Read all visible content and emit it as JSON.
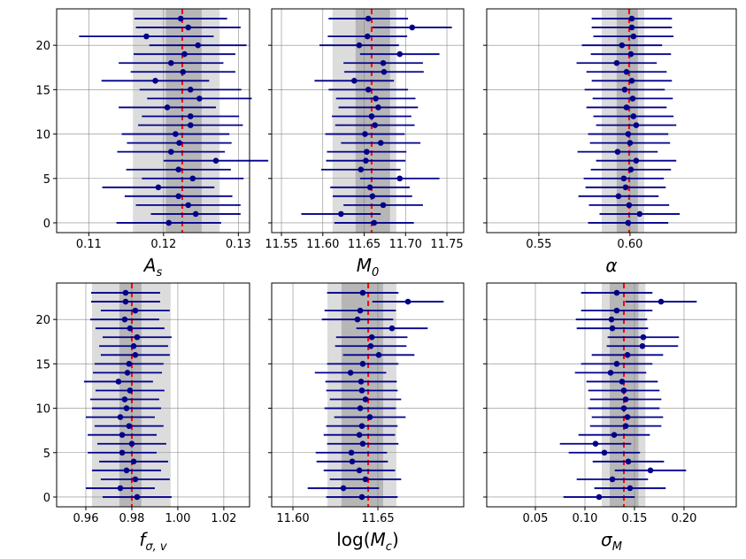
{
  "chart_data": [
    {
      "type": "errorbar",
      "xlabel": {
        "main": "A",
        "sub": "s"
      },
      "color": "#00008b",
      "ref_color": "#ff0000",
      "grid": true,
      "ytick_labels": true,
      "xlim": [
        0.1057,
        0.1315
      ],
      "xticks": [
        0.11,
        0.12,
        0.13
      ],
      "ylim": [
        -1.1,
        24.1
      ],
      "yticks": [
        0,
        5,
        10,
        15,
        20
      ],
      "ref_line": 0.1225,
      "bands": [
        {
          "range": [
            0.1159,
            0.1275
          ],
          "color": "#dcdcdc"
        },
        {
          "range": [
            0.1203,
            0.1251
          ],
          "color": "#a9a9a9"
        }
      ],
      "y": [
        0,
        1,
        2,
        3,
        4,
        5,
        6,
        7,
        8,
        9,
        10,
        11,
        12,
        13,
        14,
        15,
        16,
        17,
        18,
        19,
        20,
        21,
        22,
        23
      ],
      "x": [
        0.1207,
        0.1243,
        0.1233,
        0.122,
        0.1193,
        0.1239,
        0.122,
        0.127,
        0.121,
        0.1221,
        0.1216,
        0.1236,
        0.1236,
        0.1205,
        0.1248,
        0.1236,
        0.1189,
        0.1226,
        0.121,
        0.1228,
        0.1246,
        0.1177,
        0.1233,
        0.1223
      ],
      "xerr": [
        0.007,
        0.006,
        0.007,
        0.0072,
        0.0075,
        0.0068,
        0.007,
        0.007,
        0.0072,
        0.007,
        0.0072,
        0.007,
        0.0065,
        0.0065,
        0.007,
        0.0068,
        0.0072,
        0.007,
        0.007,
        0.0068,
        0.0065,
        0.009,
        0.007,
        0.0062
      ]
    },
    {
      "type": "errorbar",
      "xlabel": {
        "main": "M",
        "sub": "0"
      },
      "color": "#00008b",
      "ref_color": "#ff0000",
      "grid": true,
      "ytick_labels": false,
      "xlim": [
        11.5382,
        11.7703
      ],
      "xticks": [
        11.55,
        {
          "value": 11.6,
          "label": "11.60"
        },
        11.65,
        {
          "value": 11.7,
          "label": "11.70"
        },
        11.75
      ],
      "ylim": [
        -1.1,
        24.1
      ],
      "yticks": [
        0,
        5,
        10,
        15,
        20
      ],
      "ref_line": 11.659,
      "bands": [
        {
          "range": [
            11.6118,
            11.6888
          ],
          "color": "#dcdcdc"
        },
        {
          "range": [
            11.6396,
            11.6813
          ],
          "color": "#a9a9a9"
        }
      ],
      "y": [
        0,
        1,
        2,
        3,
        4,
        5,
        6,
        7,
        8,
        9,
        10,
        11,
        12,
        13,
        14,
        15,
        16,
        17,
        18,
        19,
        20,
        21,
        22,
        23
      ],
      "x": [
        11.662,
        11.622,
        11.673,
        11.66,
        11.657,
        11.693,
        11.646,
        11.652,
        11.653,
        11.67,
        11.651,
        11.663,
        11.659,
        11.667,
        11.664,
        11.655,
        11.638,
        11.674,
        11.673,
        11.693,
        11.644,
        11.654,
        11.708,
        11.655
      ],
      "xerr": [
        0.048,
        0.048,
        0.048,
        0.048,
        0.048,
        0.048,
        0.048,
        0.048,
        0.048,
        0.048,
        0.048,
        0.048,
        0.048,
        0.048,
        0.048,
        0.048,
        0.048,
        0.048,
        0.048,
        0.048,
        0.048,
        0.048,
        0.048,
        0.048
      ]
    },
    {
      "type": "errorbar",
      "xlabel": {
        "main": "α"
      },
      "color": "#00008b",
      "ref_color": "#ff0000",
      "grid": true,
      "ytick_labels": false,
      "xlim": [
        0.5214,
        0.6583
      ],
      "xticks": [
        0.55,
        {
          "value": 0.6,
          "label": "0.60"
        }
      ],
      "ylim": [
        -1.1,
        24.1
      ],
      "yticks": [
        0,
        5,
        10,
        15,
        20
      ],
      "ref_line": 0.5995,
      "bands": [
        {
          "range": [
            0.5845,
            0.6078
          ],
          "color": "#dcdcdc"
        },
        {
          "range": [
            0.5927,
            0.6043
          ],
          "color": "#a9a9a9"
        }
      ],
      "y": [
        0,
        1,
        2,
        3,
        4,
        5,
        6,
        7,
        8,
        9,
        10,
        11,
        12,
        13,
        14,
        15,
        16,
        17,
        18,
        19,
        20,
        21,
        22,
        23
      ],
      "x": [
        0.599,
        0.6053,
        0.5995,
        0.5937,
        0.5976,
        0.5966,
        0.6005,
        0.6034,
        0.5932,
        0.6,
        0.599,
        0.6034,
        0.6019,
        0.5981,
        0.6015,
        0.5971,
        0.601,
        0.5981,
        0.5927,
        0.6005,
        0.5956,
        0.6019,
        0.601,
        0.601
      ],
      "xerr": [
        0.022,
        0.022,
        0.022,
        0.022,
        0.022,
        0.022,
        0.022,
        0.022,
        0.022,
        0.022,
        0.022,
        0.022,
        0.022,
        0.022,
        0.022,
        0.022,
        0.022,
        0.022,
        0.022,
        0.022,
        0.022,
        0.022,
        0.022,
        0.022
      ]
    },
    {
      "type": "errorbar",
      "xlabel": {
        "main": "f",
        "sub": "σ, v"
      },
      "color": "#00008b",
      "ref_color": "#ff0000",
      "grid": true,
      "ytick_labels": true,
      "xlim": [
        0.9473,
        1.0312
      ],
      "xticks": [
        0.96,
        0.98,
        {
          "value": 1.0,
          "label": "1.00"
        },
        1.02
      ],
      "ylim": [
        -1.1,
        24.1
      ],
      "yticks": [
        0,
        5,
        10,
        15,
        20
      ],
      "ref_line": 0.98,
      "bands": [
        {
          "range": [
            0.9627,
            0.9969
          ],
          "color": "#dcdcdc"
        },
        {
          "range": [
            0.9746,
            0.9842
          ],
          "color": "#a9a9a9"
        }
      ],
      "y": [
        0,
        1,
        2,
        3,
        4,
        5,
        6,
        7,
        8,
        9,
        10,
        11,
        12,
        13,
        14,
        15,
        16,
        17,
        18,
        19,
        20,
        21,
        22,
        23
      ],
      "x": [
        0.9823,
        0.975,
        0.9815,
        0.9777,
        0.9808,
        0.9758,
        0.98,
        0.9758,
        0.9788,
        0.975,
        0.9777,
        0.9769,
        0.9792,
        0.9742,
        0.9781,
        0.9788,
        0.9815,
        0.9808,
        0.9823,
        0.9792,
        0.9769,
        0.9815,
        0.9773,
        0.9773
      ],
      "xerr": [
        0.015,
        0.015,
        0.015,
        0.015,
        0.015,
        0.015,
        0.015,
        0.015,
        0.015,
        0.015,
        0.015,
        0.015,
        0.015,
        0.015,
        0.015,
        0.015,
        0.015,
        0.015,
        0.015,
        0.015,
        0.015,
        0.015,
        0.015,
        0.015
      ]
    },
    {
      "type": "errorbar",
      "xlabel": {
        "pre": "log(",
        "main": "M",
        "sub": "c",
        "post": ")"
      },
      "color": "#00008b",
      "ref_color": "#ff0000",
      "grid": true,
      "ytick_labels": false,
      "xlim": [
        11.5875,
        11.7005
      ],
      "xticks": [
        {
          "value": 11.6,
          "label": "11.60"
        },
        11.65
      ],
      "ylim": [
        -1.1,
        24.1
      ],
      "yticks": [
        0,
        5,
        10,
        15,
        20
      ],
      "ref_line": 11.6443,
      "bands": [
        {
          "range": [
            11.6203,
            11.6609
          ],
          "color": "#dcdcdc"
        },
        {
          "range": [
            11.6286,
            11.6531
          ],
          "color": "#a9a9a9"
        }
      ],
      "y": [
        0,
        1,
        2,
        3,
        4,
        5,
        6,
        7,
        8,
        9,
        10,
        11,
        12,
        13,
        14,
        15,
        16,
        17,
        18,
        19,
        20,
        21,
        22,
        23
      ],
      "x": [
        11.6406,
        11.6297,
        11.6427,
        11.6391,
        11.6349,
        11.6344,
        11.6411,
        11.6391,
        11.6406,
        11.6453,
        11.6396,
        11.6427,
        11.6406,
        11.6401,
        11.6339,
        11.6411,
        11.6505,
        11.6458,
        11.6464,
        11.6583,
        11.638,
        11.6396,
        11.6677,
        11.6411
      ],
      "xerr": [
        0.021,
        0.021,
        0.021,
        0.021,
        0.021,
        0.021,
        0.021,
        0.021,
        0.021,
        0.021,
        0.021,
        0.021,
        0.021,
        0.021,
        0.021,
        0.021,
        0.021,
        0.021,
        0.021,
        0.021,
        0.021,
        0.021,
        0.021,
        0.021
      ]
    },
    {
      "type": "errorbar",
      "xlabel": {
        "main": "σ",
        "sub": "M"
      },
      "color": "#00008b",
      "ref_color": "#ff0000",
      "grid": true,
      "ytick_labels": false,
      "xlim": [
        0.0009,
        0.2527
      ],
      "xticks": [
        0.05,
        {
          "value": 0.1,
          "label": "0.10"
        },
        0.15,
        {
          "value": 0.2,
          "label": "0.20"
        }
      ],
      "ylim": [
        -1.1,
        24.1
      ],
      "yticks": [
        0,
        5,
        10,
        15,
        20
      ],
      "ref_line": 0.1393,
      "bands": [
        {
          "range": [
            0.117,
            0.161
          ],
          "color": "#dcdcdc"
        },
        {
          "range": [
            0.125,
            0.154
          ],
          "color": "#a9a9a9"
        }
      ],
      "y": [
        0,
        1,
        2,
        3,
        4,
        5,
        6,
        7,
        8,
        9,
        10,
        11,
        12,
        13,
        14,
        15,
        16,
        17,
        18,
        19,
        20,
        21,
        22,
        23
      ],
      "x": [
        0.1143,
        0.1455,
        0.1277,
        0.1661,
        0.1438,
        0.1196,
        0.1107,
        0.1295,
        0.1411,
        0.1429,
        0.1393,
        0.1411,
        0.1393,
        0.1375,
        0.1259,
        0.1321,
        0.1429,
        0.158,
        0.1589,
        0.1277,
        0.1268,
        0.1321,
        0.1768,
        0.1321
      ],
      "xerr": [
        0.036,
        0.036,
        0.036,
        0.036,
        0.036,
        0.036,
        0.036,
        0.036,
        0.036,
        0.036,
        0.036,
        0.036,
        0.036,
        0.036,
        0.036,
        0.036,
        0.036,
        0.036,
        0.036,
        0.036,
        0.036,
        0.036,
        0.036,
        0.036
      ]
    }
  ]
}
